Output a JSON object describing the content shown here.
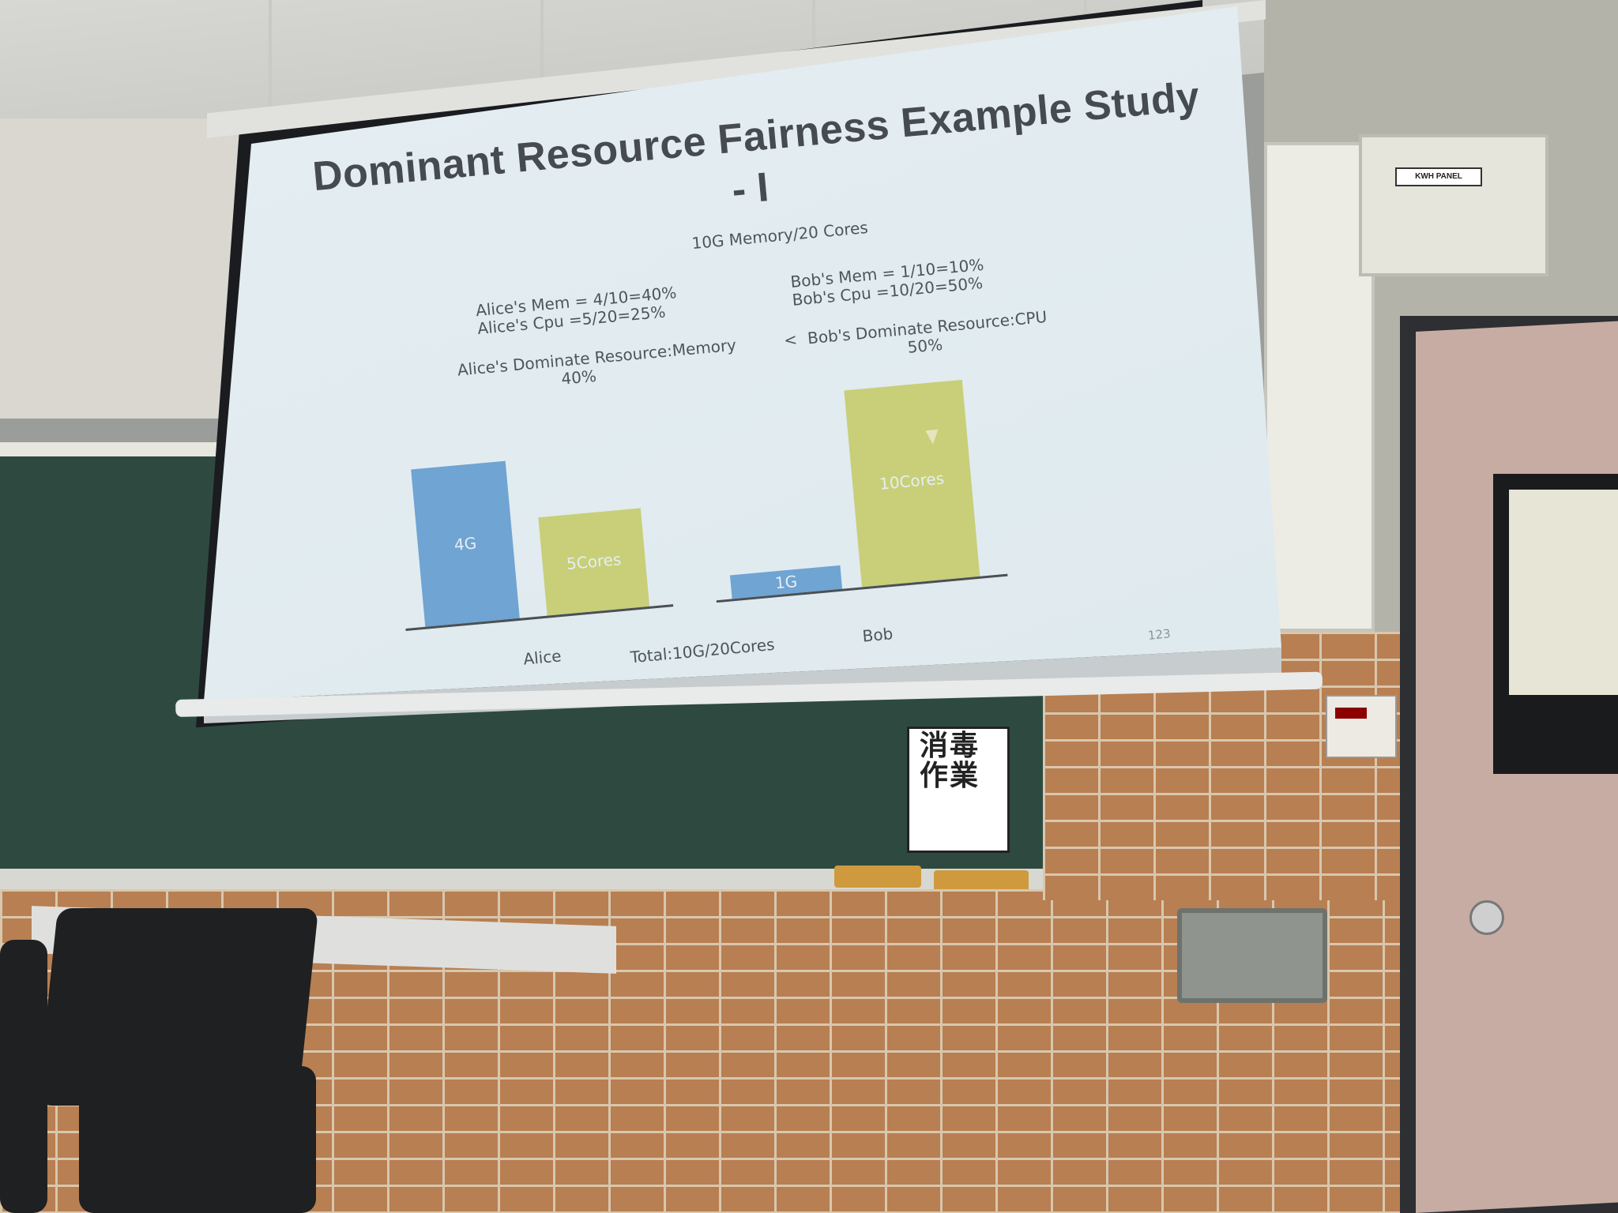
{
  "slide": {
    "title_line1": "Dominant Resource Fairness Example Study",
    "title_line2": "- I",
    "total_resource": "10G Memory/20 Cores",
    "alice_mem": "Alice's Mem = 4/10=40%",
    "alice_cpu": "Alice's Cpu =5/20=25%",
    "bob_mem": "Bob's Mem = 1/10=10%",
    "bob_cpu": "Bob's Cpu =10/20=50%",
    "alice_dominant": "Alice's Dominate Resource:Memory",
    "alice_dominant_pct": "40%",
    "comparison": "<",
    "bob_dominant": "Bob's Dominate Resource:CPU",
    "bob_dominant_pct": "50%",
    "alice_label": "Alice",
    "bob_label": "Bob",
    "total_label": "Total:10G/20Cores",
    "page_number": "123",
    "bars": {
      "alice_mem": "4G",
      "alice_cpu": "5Cores",
      "bob_mem": "1G",
      "bob_cpu": "10Cores"
    }
  },
  "chart_data": {
    "type": "bar",
    "categories": [
      "Alice",
      "Bob"
    ],
    "series": [
      {
        "name": "Memory",
        "values": [
          4,
          1
        ]
      },
      {
        "name": "CPU",
        "values": [
          5,
          10
        ]
      }
    ],
    "xlabel": "Total:10G/20Cores"
  },
  "room": {
    "cabinet_label": "KWH PANEL",
    "poster_text": "消毒作業"
  },
  "colors": {
    "memory_bar": "#6fa4d3",
    "cpu_bar": "#c8cf78",
    "slide_bg": "#e2ecf0",
    "chalkboard": "#2e4a40",
    "brick": "#b87f52"
  }
}
